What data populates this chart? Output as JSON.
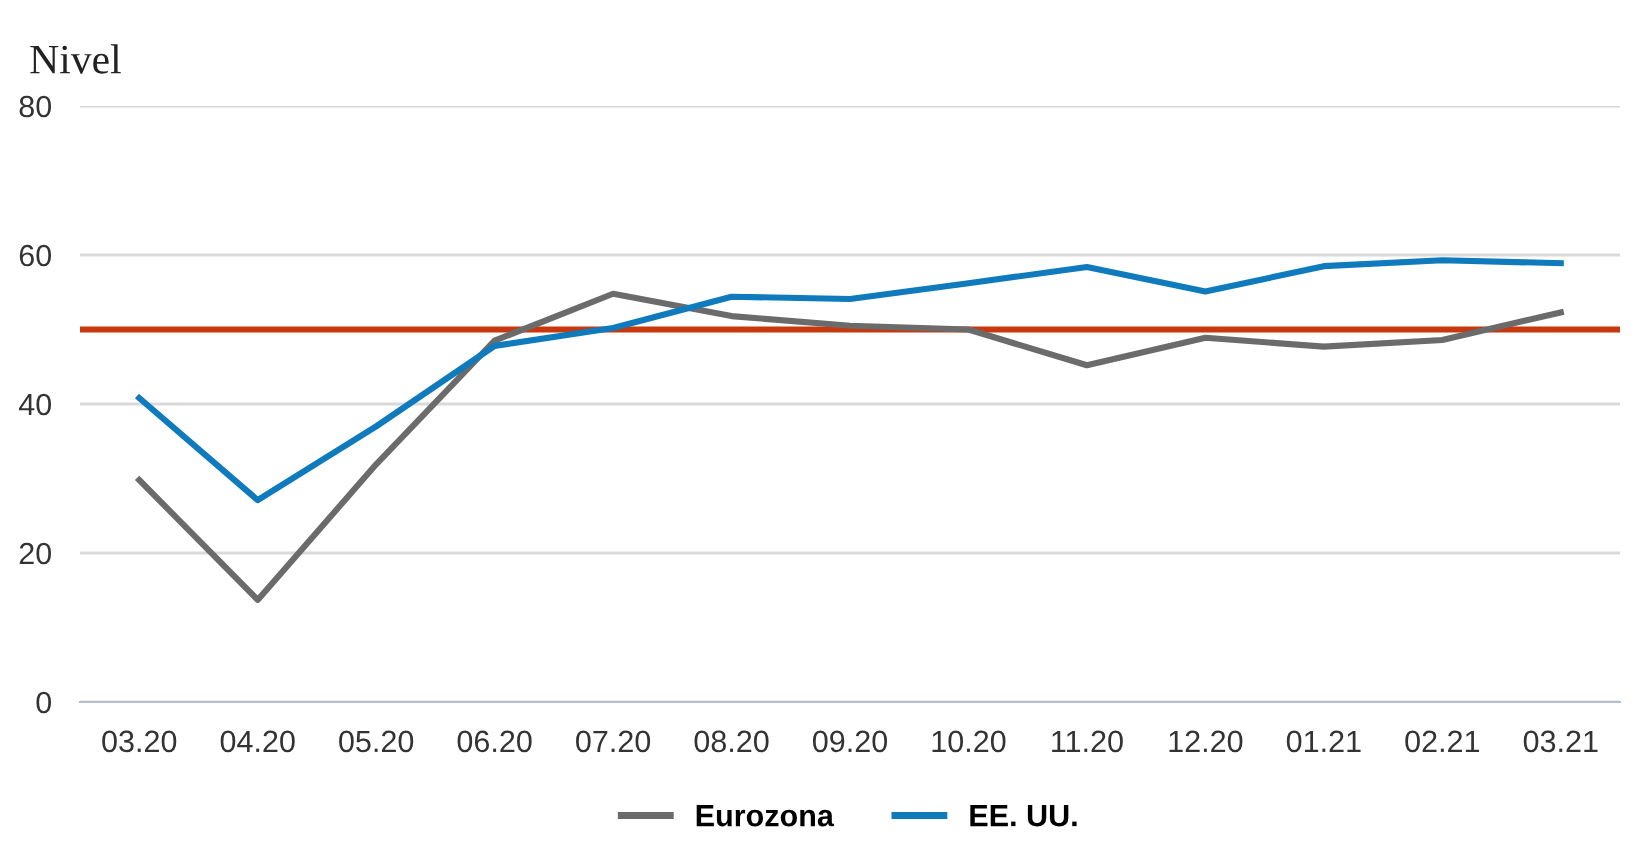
{
  "chart_data": {
    "type": "line",
    "ylabel": "Nivel",
    "categories": [
      "03.20",
      "04.20",
      "05.20",
      "06.20",
      "07.20",
      "08.20",
      "09.20",
      "10.20",
      "11.20",
      "12.20",
      "01.21",
      "02.21",
      "03.21"
    ],
    "series": [
      {
        "name": "Eurozona",
        "color": "#6b6b6b",
        "values": [
          29.8,
          13.7,
          31.9,
          48.5,
          54.8,
          51.8,
          50.5,
          50.0,
          45.2,
          48.9,
          47.7,
          48.6,
          52.3
        ]
      },
      {
        "name": "EE. UU.",
        "color": "#0f7bbd",
        "values": [
          40.8,
          27.1,
          37.0,
          47.8,
          50.2,
          54.4,
          54.1,
          56.2,
          58.4,
          55.1,
          58.5,
          59.3,
          58.9
        ]
      }
    ],
    "ref_lines": [
      {
        "axis": "y",
        "value": 50,
        "color": "#c8380c"
      }
    ],
    "ylim": [
      0,
      80
    ],
    "yticks": [
      0,
      20,
      40,
      60,
      80
    ],
    "grid": "y",
    "legend": "bottom",
    "marker": "none",
    "line_style": "solid"
  }
}
